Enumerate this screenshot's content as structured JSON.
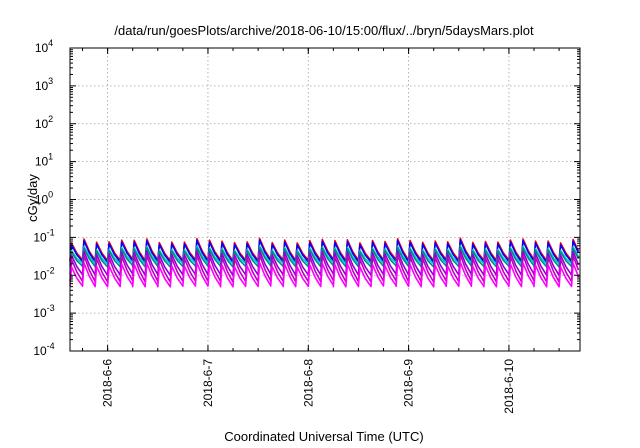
{
  "chart_data": {
    "type": "line",
    "title": "/data/run/goesPlots/archive/2018-06-10/15:00/flux/../bryn/5daysMars.plot",
    "xlabel": "Coordinated Universal Time (UTC)",
    "ylabel": "cGy/day",
    "yscale": "log",
    "ylim": [
      0.0001,
      10000
    ],
    "y_ticks": [
      {
        "base": "10",
        "exp": "-4"
      },
      {
        "base": "10",
        "exp": "-3"
      },
      {
        "base": "10",
        "exp": "-2"
      },
      {
        "base": "10",
        "exp": "-1"
      },
      {
        "base": "10",
        "exp": "0"
      },
      {
        "base": "10",
        "exp": "1"
      },
      {
        "base": "10",
        "exp": "2"
      },
      {
        "base": "10",
        "exp": "3"
      },
      {
        "base": "10",
        "exp": "4"
      }
    ],
    "xlim": [
      "2018-06-05T15:00",
      "2018-06-10T17:00"
    ],
    "x_ticks": [
      "2018-6-6",
      "2018-6-7",
      "2018-6-8",
      "2018-6-9",
      "2018-6-10"
    ],
    "grid": true,
    "pattern": {
      "cycle_hours": 3,
      "peak_range": [
        0.04,
        0.1
      ],
      "trough_range": [
        0.002,
        0.006
      ]
    },
    "series": [
      {
        "color": "#ff0000",
        "peak": 0.095,
        "trough": 0.022
      },
      {
        "color": "#0000ff",
        "peak": 0.085,
        "trough": 0.02
      },
      {
        "color": "#00c8c8",
        "peak": 0.06,
        "trough": 0.018
      },
      {
        "color": "#008b8b",
        "peak": 0.055,
        "trough": 0.015
      },
      {
        "color": "#9400d3",
        "peak": 0.045,
        "trough": 0.009
      },
      {
        "color": "#c000c0",
        "peak": 0.035,
        "trough": 0.006
      },
      {
        "color": "#ff00ff",
        "peak": 0.022,
        "trough": 0.0045
      }
    ]
  }
}
